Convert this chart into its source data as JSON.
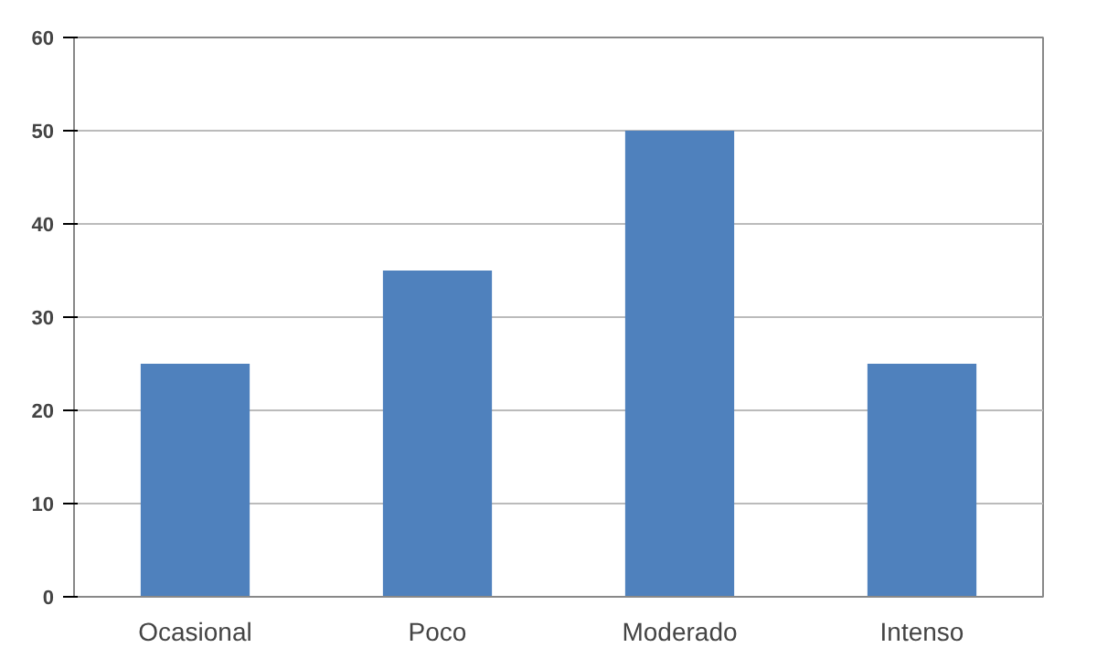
{
  "chart_data": {
    "type": "bar",
    "categories": [
      "Ocasional",
      "Poco",
      "Moderado",
      "Intenso"
    ],
    "values": [
      25,
      35,
      50,
      25
    ],
    "color": "#4f81bd",
    "ylim": [
      0,
      60
    ],
    "yticks": [
      0,
      10,
      20,
      30,
      40,
      50,
      60
    ],
    "grid": "y"
  }
}
